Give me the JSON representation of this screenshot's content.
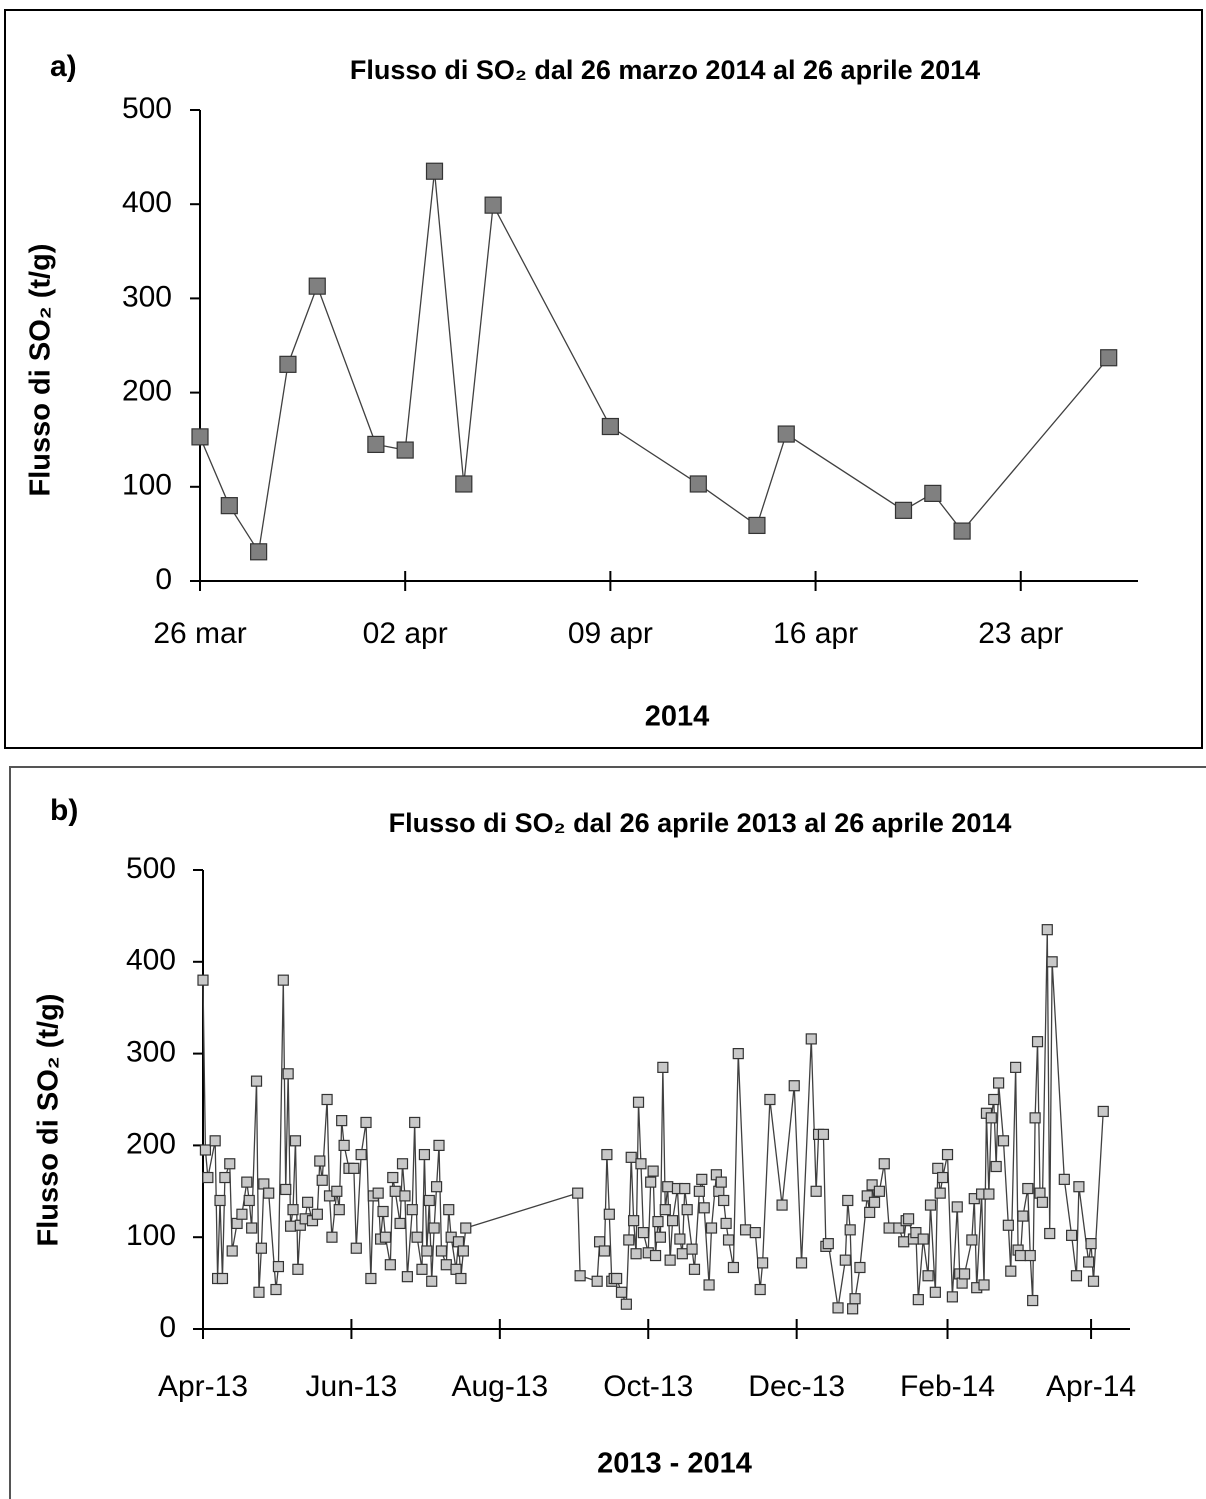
{
  "chart_data": [
    {
      "type": "line",
      "panel_label": "a)",
      "title": "Flusso di SO₂ dal 26 marzo 2014 al 26 aprile 2014",
      "y_label": "Flusso di SO₂ (t/g)",
      "x_label": "2014",
      "color": "#404040",
      "marker_color": "#808080",
      "xlim": [
        "2014-03-26",
        "2014-04-27"
      ],
      "xticks": [
        {
          "value": "2014-03-26",
          "label": "26 mar"
        },
        {
          "value": "2014-04-02",
          "label": "02 apr"
        },
        {
          "value": "2014-04-09",
          "label": "09 apr"
        },
        {
          "value": "2014-04-16",
          "label": "16 apr"
        },
        {
          "value": "2014-04-23",
          "label": "23 apr"
        }
      ],
      "ylim": [
        0,
        500
      ],
      "yticks": [
        0,
        100,
        200,
        300,
        400,
        500
      ],
      "x": [
        "2014-03-26",
        "2014-03-27",
        "2014-03-28",
        "2014-03-29",
        "2014-03-30",
        "2014-04-01",
        "2014-04-02",
        "2014-04-03",
        "2014-04-04",
        "2014-04-05",
        "2014-04-09",
        "2014-04-12",
        "2014-04-14",
        "2014-04-15",
        "2014-04-19",
        "2014-04-20",
        "2014-04-21",
        "2014-04-26"
      ],
      "values": [
        153,
        80,
        31,
        230,
        313,
        145,
        139,
        435,
        103,
        399,
        164,
        103,
        59,
        156,
        75,
        93,
        53,
        237
      ]
    },
    {
      "type": "line",
      "panel_label": "b)",
      "title": "Flusso di SO₂ dal 26 aprile 2013 al 26 aprile 2014",
      "y_label": "Flusso di SO₂ (t/g)",
      "x_label": "2013 - 2014",
      "color": "#404040",
      "marker_color": "#c8c8c8",
      "xlim": [
        "2013-04-26",
        "2014-05-12"
      ],
      "xticks": [
        {
          "value": "2013-04-26",
          "label": "Apr-13"
        },
        {
          "value": "2013-06-26",
          "label": "Jun-13"
        },
        {
          "value": "2013-08-26",
          "label": "Aug-13"
        },
        {
          "value": "2013-10-26",
          "label": "Oct-13"
        },
        {
          "value": "2013-12-26",
          "label": "Dec-13"
        },
        {
          "value": "2014-02-26",
          "label": "Feb-14"
        },
        {
          "value": "2014-04-26",
          "label": "Apr-14"
        }
      ],
      "ylim": [
        0,
        500
      ],
      "yticks": [
        0,
        100,
        200,
        300,
        400,
        500
      ],
      "x": [
        "2013-04-26",
        "2013-04-27",
        "2013-04-28",
        "2013-05-01",
        "2013-05-02",
        "2013-05-03",
        "2013-05-04",
        "2013-05-05",
        "2013-05-07",
        "2013-05-08",
        "2013-05-10",
        "2013-05-12",
        "2013-05-14",
        "2013-05-15",
        "2013-05-16",
        "2013-05-18",
        "2013-05-19",
        "2013-05-20",
        "2013-05-21",
        "2013-05-23",
        "2013-05-26",
        "2013-05-27",
        "2013-05-29",
        "2013-05-30",
        "2013-05-31",
        "2013-06-01",
        "2013-06-02",
        "2013-06-03",
        "2013-06-04",
        "2013-06-05",
        "2013-06-07",
        "2013-06-08",
        "2013-06-10",
        "2013-06-12",
        "2013-06-13",
        "2013-06-14",
        "2013-06-16",
        "2013-06-17",
        "2013-06-18",
        "2013-06-20",
        "2013-06-21",
        "2013-06-22",
        "2013-06-23",
        "2013-06-25",
        "2013-06-27",
        "2013-06-28",
        "2013-06-30",
        "2013-07-02",
        "2013-07-04",
        "2013-07-05",
        "2013-07-07",
        "2013-07-08",
        "2013-07-09",
        "2013-07-10",
        "2013-07-12",
        "2013-07-13",
        "2013-07-14",
        "2013-07-16",
        "2013-07-17",
        "2013-07-18",
        "2013-07-19",
        "2013-07-21",
        "2013-07-22",
        "2013-07-23",
        "2013-07-25",
        "2013-07-26",
        "2013-07-27",
        "2013-07-28",
        "2013-07-29",
        "2013-07-30",
        "2013-07-31",
        "2013-08-01",
        "2013-08-02",
        "2013-08-04",
        "2013-08-05",
        "2013-08-06",
        "2013-08-08",
        "2013-08-09",
        "2013-08-10",
        "2013-08-11",
        "2013-08-12",
        "2013-09-27",
        "2013-09-28",
        "2013-10-05",
        "2013-10-06",
        "2013-10-08",
        "2013-10-09",
        "2013-10-10",
        "2013-10-11",
        "2013-10-12",
        "2013-10-13",
        "2013-10-15",
        "2013-10-17",
        "2013-10-18",
        "2013-10-19",
        "2013-10-20",
        "2013-10-21",
        "2013-10-22",
        "2013-10-23",
        "2013-10-24",
        "2013-10-26",
        "2013-10-27",
        "2013-10-28",
        "2013-10-29",
        "2013-10-30",
        "2013-10-31",
        "2013-11-01",
        "2013-11-02",
        "2013-11-03",
        "2013-11-04",
        "2013-11-05",
        "2013-11-07",
        "2013-11-08",
        "2013-11-09",
        "2013-11-10",
        "2013-11-11",
        "2013-11-13",
        "2013-11-14",
        "2013-11-16",
        "2013-11-17",
        "2013-11-18",
        "2013-11-20",
        "2013-11-21",
        "2013-11-23",
        "2013-11-24",
        "2013-11-25",
        "2013-11-26",
        "2013-11-27",
        "2013-11-28",
        "2013-11-30",
        "2013-12-02",
        "2013-12-05",
        "2013-12-09",
        "2013-12-11",
        "2013-12-12",
        "2013-12-15",
        "2013-12-20",
        "2013-12-25",
        "2013-12-28",
        "2014-01-01",
        "2014-01-03",
        "2014-01-04",
        "2014-01-06",
        "2014-01-07",
        "2014-01-08",
        "2014-01-12",
        "2014-01-15",
        "2014-01-16",
        "2014-01-17",
        "2014-01-18",
        "2014-01-19",
        "2014-01-21",
        "2014-01-24",
        "2014-01-25",
        "2014-01-26",
        "2014-01-27",
        "2014-01-29",
        "2014-01-31",
        "2014-02-02",
        "2014-02-06",
        "2014-02-08",
        "2014-02-09",
        "2014-02-10",
        "2014-02-12",
        "2014-02-13",
        "2014-02-14",
        "2014-02-16",
        "2014-02-18",
        "2014-02-19",
        "2014-02-21",
        "2014-02-22",
        "2014-02-23",
        "2014-02-24",
        "2014-02-26",
        "2014-02-28",
        "2014-03-02",
        "2014-03-03",
        "2014-03-04",
        "2014-03-05",
        "2014-03-08",
        "2014-03-09",
        "2014-03-10",
        "2014-03-12",
        "2014-03-13",
        "2014-03-14",
        "2014-03-15",
        "2014-03-16",
        "2014-03-17",
        "2014-03-18",
        "2014-03-19",
        "2014-03-21",
        "2014-03-23",
        "2014-03-24",
        "2014-03-26",
        "2014-03-27",
        "2014-03-28",
        "2014-03-29",
        "2014-03-31",
        "2014-04-01",
        "2014-04-02",
        "2014-04-03",
        "2014-04-04",
        "2014-04-05",
        "2014-04-06",
        "2014-04-08",
        "2014-04-09",
        "2014-04-10",
        "2014-04-15",
        "2014-04-18",
        "2014-04-20",
        "2014-04-21",
        "2014-04-25",
        "2014-04-26",
        "2014-04-27",
        "2014-05-01"
      ],
      "values": [
        380,
        195,
        165,
        205,
        55,
        140,
        55,
        165,
        180,
        85,
        115,
        125,
        160,
        140,
        110,
        270,
        40,
        88,
        158,
        148,
        43,
        68,
        380,
        152,
        278,
        112,
        130,
        205,
        65,
        113,
        120,
        138,
        118,
        125,
        183,
        162,
        250,
        145,
        100,
        150,
        130,
        227,
        200,
        175,
        175,
        88,
        190,
        225,
        55,
        145,
        148,
        98,
        128,
        100,
        70,
        165,
        150,
        115,
        180,
        145,
        57,
        130,
        225,
        100,
        65,
        190,
        85,
        140,
        52,
        110,
        155,
        200,
        85,
        70,
        130,
        100,
        65,
        95,
        55,
        85,
        110,
        148,
        58,
        52,
        95,
        85,
        190,
        125,
        52,
        55,
        55,
        40,
        27,
        97,
        187,
        118,
        82,
        247,
        180,
        105,
        83,
        160,
        172,
        80,
        117,
        100,
        285,
        130,
        155,
        75,
        118,
        153,
        98,
        82,
        153,
        130,
        87,
        65,
        150,
        163,
        132,
        48,
        110,
        168,
        150,
        160,
        140,
        115,
        97,
        67,
        300,
        108,
        105,
        43,
        72,
        250,
        135,
        265,
        72,
        316,
        150,
        212,
        212,
        90,
        93,
        23,
        75,
        140,
        108,
        22,
        33,
        67,
        145,
        127,
        157,
        138,
        150,
        180,
        110,
        110,
        95,
        118,
        120,
        98,
        105,
        32,
        98,
        58,
        135,
        40,
        175,
        148,
        165,
        190,
        35,
        133,
        60,
        50,
        60,
        97,
        142,
        45,
        147,
        48,
        235,
        147,
        230,
        250,
        177,
        268,
        205,
        113,
        63,
        285,
        86,
        80,
        123,
        153,
        80,
        31,
        230,
        313,
        148,
        138,
        435,
        104,
        400,
        163,
        102,
        58,
        155,
        73,
        93,
        52,
        237
      ]
    }
  ]
}
